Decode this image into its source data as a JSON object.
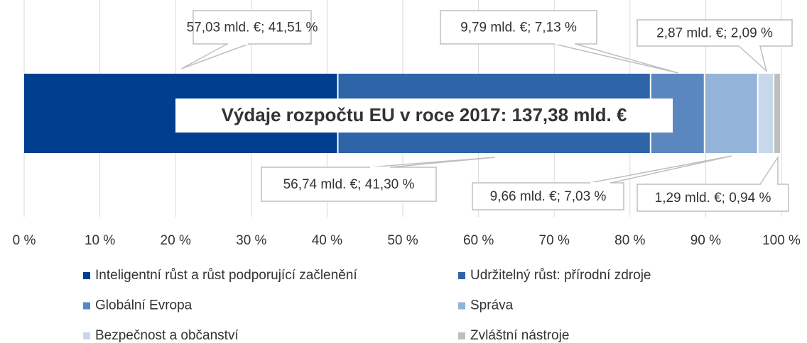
{
  "chart_data": {
    "type": "stacked-bar-horizontal",
    "title": "Výdaje rozpočtu EU v roce 2017: 137,38 mld. €",
    "series": [
      {
        "name": "Inteligentní růst a růst podporující začlenění",
        "color": "#003f8f",
        "values": [
          41.51
        ],
        "value_labels": [
          "57,03 mld. €; 41,51 %"
        ]
      },
      {
        "name": "Udržitelný růst: přírodní zdroje",
        "color": "#2e64a8",
        "values": [
          41.3
        ],
        "value_labels": [
          "56,74 mld. €; 41,30 %"
        ]
      },
      {
        "name": "Globální Evropa",
        "color": "#5b87c0",
        "values": [
          7.13
        ],
        "value_labels": [
          "9,79 mld. €; 7,13 %"
        ]
      },
      {
        "name": "Správa",
        "color": "#94b3d8",
        "values": [
          7.03
        ],
        "value_labels": [
          "9,66 mld. €; 7,03 %"
        ]
      },
      {
        "name": "Bezpečnost a občanství",
        "color": "#c8d8ec",
        "values": [
          2.09
        ],
        "value_labels": [
          "2,87 mld. €; 2,09 %"
        ]
      },
      {
        "name": "Zvláštní nástroje",
        "color": "#bfbfbf",
        "values": [
          0.94
        ],
        "value_labels": [
          "1,29 mld. €; 0,94 %"
        ]
      }
    ],
    "xlim": [
      0,
      100
    ],
    "xticks": [
      {
        "value": 0,
        "label": "0 %"
      },
      {
        "value": 10,
        "label": "10 %"
      },
      {
        "value": 20,
        "label": "20 %"
      },
      {
        "value": 30,
        "label": "30 %"
      },
      {
        "value": 40,
        "label": "40 %"
      },
      {
        "value": 50,
        "label": "50 %"
      },
      {
        "value": 60,
        "label": "60 %"
      },
      {
        "value": 70,
        "label": "70 %"
      },
      {
        "value": 80,
        "label": "80 %"
      },
      {
        "value": 90,
        "label": "90 %"
      },
      {
        "value": 100,
        "label": "100 %"
      }
    ],
    "grid": true
  }
}
